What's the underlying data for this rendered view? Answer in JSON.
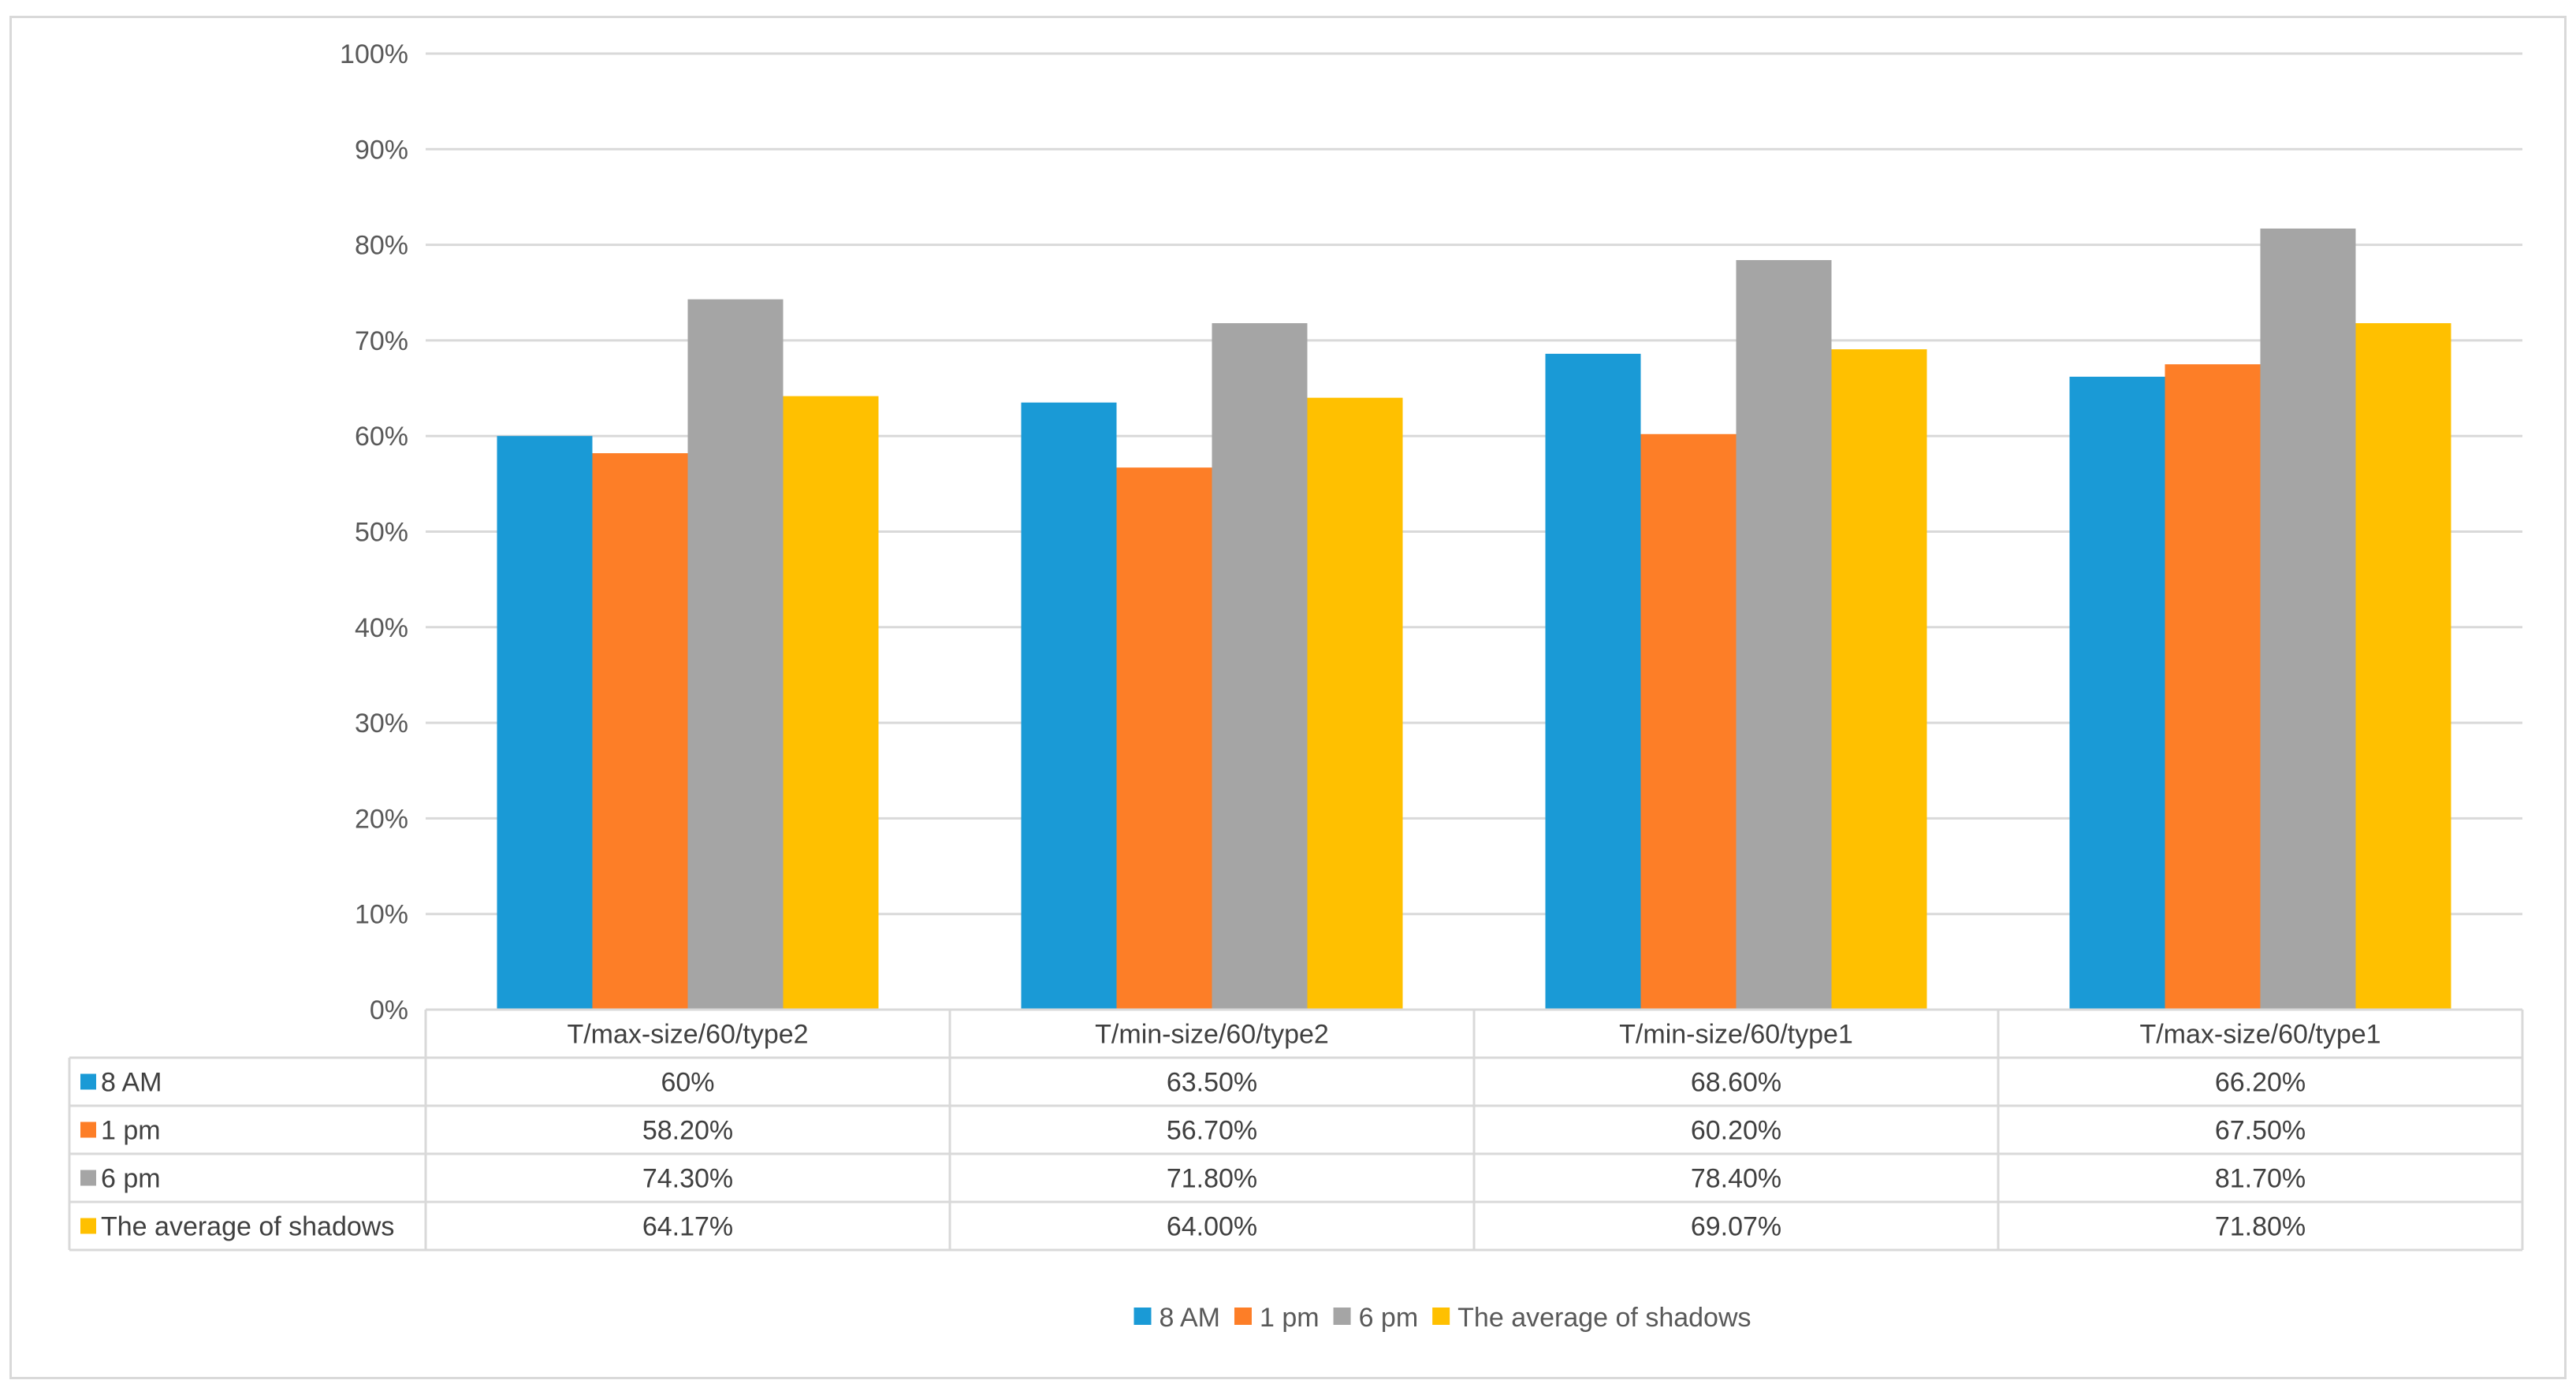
{
  "chart_data": {
    "type": "bar",
    "title": "",
    "xlabel": "",
    "ylabel": "",
    "ylim": [
      0,
      100
    ],
    "y_tick_values": [
      0,
      10,
      20,
      30,
      40,
      50,
      60,
      70,
      80,
      90,
      100
    ],
    "y_tick_labels": [
      "0%",
      "10%",
      "20%",
      "30%",
      "40%",
      "50%",
      "60%",
      "70%",
      "80%",
      "90%",
      "100%"
    ],
    "grid": true,
    "legend_position": "bottom",
    "categories": [
      "T/max-size/60/type2",
      "T/min-size/60/type2",
      "T/min-size/60/type1",
      "T/max-size/60/type1"
    ],
    "series": [
      {
        "name": "8 AM",
        "color": "#1a9ad6",
        "values": [
          60,
          63.5,
          68.6,
          66.2
        ],
        "table_labels": [
          "60%",
          "63.50%",
          "68.60%",
          "66.20%"
        ]
      },
      {
        "name": "1 pm",
        "color": "#fd7e27",
        "values": [
          58.2,
          56.7,
          60.2,
          67.5
        ],
        "table_labels": [
          "58.20%",
          "56.70%",
          "60.20%",
          "67.50%"
        ]
      },
      {
        "name": "6 pm",
        "color": "#a5a5a5",
        "values": [
          74.3,
          71.8,
          78.4,
          81.7
        ],
        "table_labels": [
          "74.30%",
          "71.80%",
          "78.40%",
          "81.70%"
        ]
      },
      {
        "name": "The average of shadows",
        "color": "#ffc000",
        "values": [
          64.17,
          64.0,
          69.07,
          71.8
        ],
        "table_labels": [
          "64.17%",
          "64.00%",
          "69.07%",
          "71.80%"
        ]
      }
    ]
  }
}
